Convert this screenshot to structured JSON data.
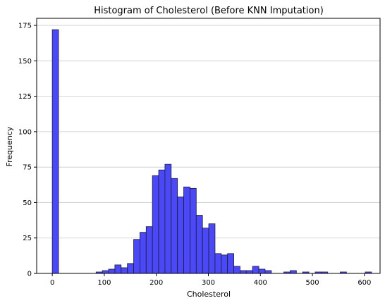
{
  "chart_data": {
    "type": "bar",
    "subtype": "histogram",
    "title": "Histogram of Cholesterol (Before KNN Imputation)",
    "xlabel": "Cholesterol",
    "ylabel": "Frequency",
    "xlim": [
      -30,
      630
    ],
    "ylim": [
      0,
      180
    ],
    "bin_width": 12.03,
    "bin_start": 0,
    "counts": [
      172,
      0,
      0,
      0,
      0,
      0,
      0,
      1,
      2,
      3,
      6,
      4,
      7,
      24,
      29,
      33,
      69,
      73,
      77,
      67,
      54,
      61,
      60,
      41,
      32,
      35,
      14,
      13,
      14,
      5,
      2,
      2,
      5,
      3,
      2,
      0,
      0,
      1,
      2,
      0,
      1,
      0,
      1,
      1,
      0,
      0,
      1,
      0,
      0,
      0,
      1
    ],
    "x_ticks": [
      0,
      100,
      200,
      300,
      400,
      500,
      600
    ],
    "y_ticks": [
      0,
      25,
      50,
      75,
      100,
      125,
      150,
      175
    ],
    "grid": "y",
    "bar_color": "#4a49f5",
    "edge_color": "#1a1a40"
  }
}
